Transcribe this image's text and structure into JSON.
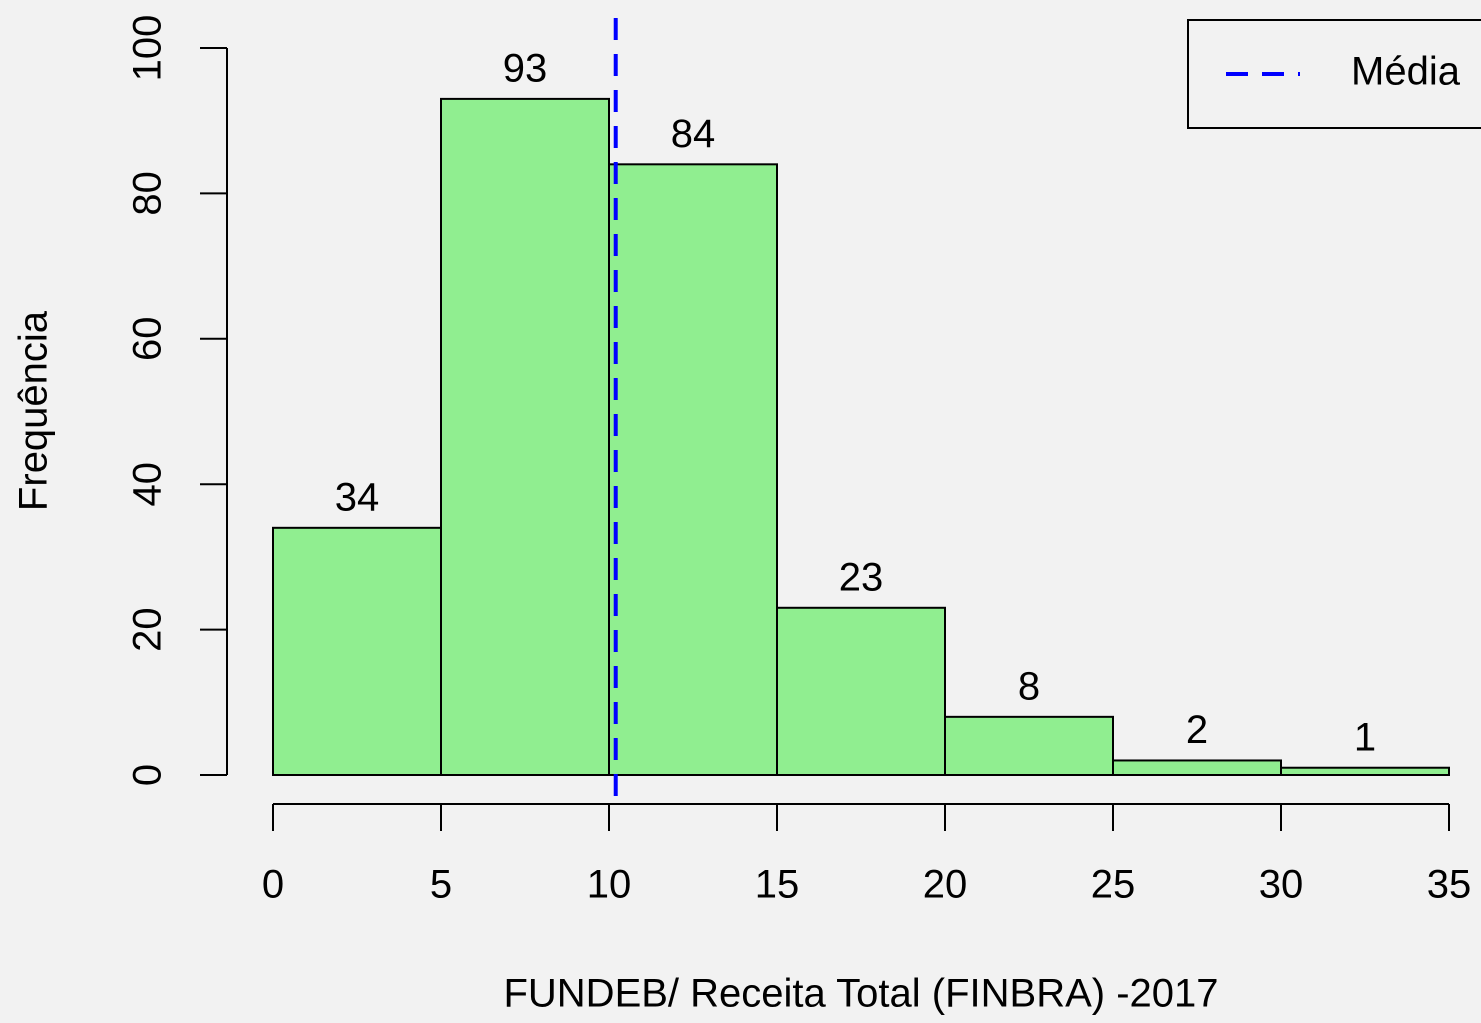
{
  "chart_data": {
    "type": "histogram",
    "xlabel": "FUNDEB/ Receita Total (FINBRA) -2017",
    "ylabel": "Frequência",
    "bins": [
      0,
      5,
      10,
      15,
      20,
      25,
      30,
      35
    ],
    "counts": [
      34,
      93,
      84,
      23,
      8,
      2,
      1
    ],
    "color": "#90ee90",
    "xlim": [
      0,
      35
    ],
    "xticks": [
      0,
      5,
      10,
      15,
      20,
      25,
      30,
      35
    ],
    "ylim": [
      0,
      100
    ],
    "yticks": [
      0,
      20,
      40,
      60,
      80,
      100
    ],
    "reference_lines": [
      {
        "name": "Média",
        "x": 10.2,
        "color": "#0000ff",
        "dashed": true
      }
    ],
    "legend": "topright"
  }
}
